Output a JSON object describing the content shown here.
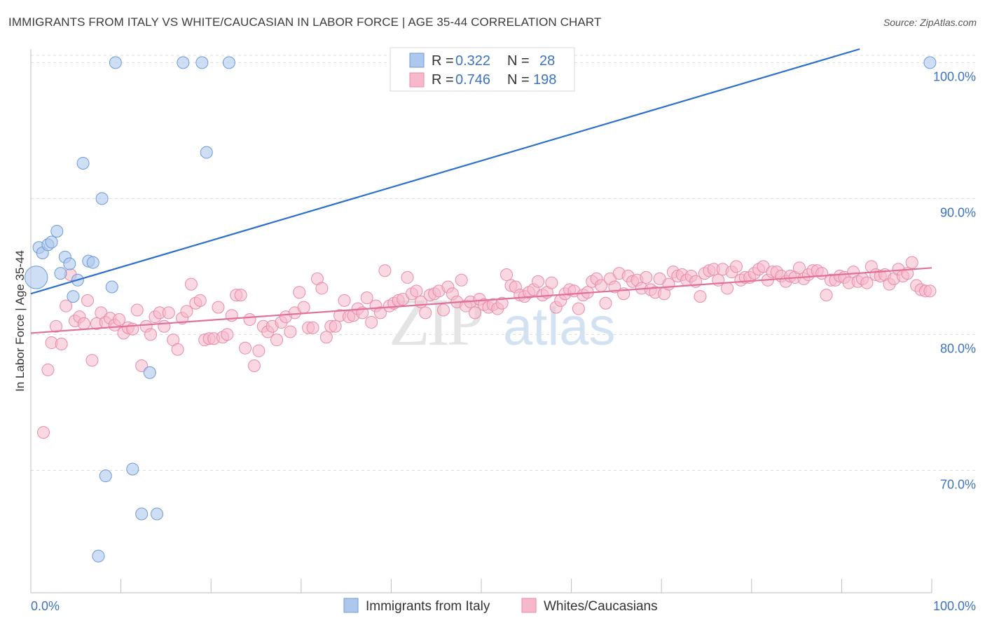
{
  "title": "IMMIGRANTS FROM ITALY VS WHITE/CAUCASIAN IN LABOR FORCE | AGE 35-44 CORRELATION CHART",
  "source": "Source: ZipAtlas.com",
  "watermark": {
    "zip": "ZIP",
    "atlas": "atlas"
  },
  "colors": {
    "blue_fill": "#adc8ec",
    "blue_stroke": "#6f9ad6",
    "blue_line": "#2c6fcc",
    "pink_fill": "#f6b8cb",
    "pink_stroke": "#e98aa9",
    "pink_line": "#e0709a",
    "axis_label": "#3b73c4",
    "grid": "#dcdcdc"
  },
  "legend": {
    "blue": {
      "r_label": "R =",
      "r_value": "0.322",
      "n_label": "N =",
      "n_value": "28"
    },
    "pink": {
      "r_label": "R =",
      "r_value": "0.746",
      "n_label": "N =",
      "n_value": "198"
    }
  },
  "chart_data": {
    "type": "scatter",
    "xlabel": "",
    "ylabel": "In Labor Force | Age 35-44",
    "x_ticks": [
      "0.0%",
      "100.0%"
    ],
    "y_ticks": [
      {
        "value": 70,
        "label": "70.0%"
      },
      {
        "value": 80,
        "label": "80.0%"
      },
      {
        "value": 90,
        "label": "90.0%"
      },
      {
        "value": 100,
        "label": "100.0%"
      }
    ],
    "xlim": [
      0,
      100
    ],
    "ylim": [
      61,
      101
    ],
    "grid": true,
    "legend_placement": "top-center",
    "series": [
      {
        "name": "Immigrants from Italy",
        "color": "blue",
        "trend": {
          "x1": 0,
          "y1": 83.0,
          "x2": 92.0,
          "y2": 101.0
        },
        "points": [
          [
            0.6,
            84.2,
            3
          ],
          [
            0.9,
            86.4,
            1
          ],
          [
            1.3,
            86.0,
            1
          ],
          [
            1.9,
            86.6,
            1
          ],
          [
            2.3,
            86.8,
            1
          ],
          [
            2.9,
            87.6,
            1
          ],
          [
            3.3,
            84.5,
            1
          ],
          [
            3.8,
            85.7,
            1
          ],
          [
            4.3,
            85.2,
            1
          ],
          [
            4.7,
            82.8,
            1
          ],
          [
            5.2,
            84.0,
            1
          ],
          [
            5.8,
            92.6,
            1
          ],
          [
            6.4,
            85.4,
            1
          ],
          [
            6.9,
            85.3,
            1
          ],
          [
            7.9,
            90.0,
            1
          ],
          [
            9.0,
            83.5,
            1
          ],
          [
            9.4,
            100.0,
            1
          ],
          [
            16.9,
            100.0,
            1
          ],
          [
            19.0,
            100.0,
            1
          ],
          [
            22.0,
            100.0,
            1
          ],
          [
            19.5,
            93.4,
            1
          ],
          [
            13.2,
            77.2,
            1
          ],
          [
            8.3,
            69.6,
            1
          ],
          [
            11.3,
            70.1,
            1
          ],
          [
            12.3,
            66.8,
            1
          ],
          [
            14.0,
            66.8,
            1
          ],
          [
            7.5,
            63.7,
            1
          ],
          [
            99.8,
            100.0,
            1
          ]
        ]
      },
      {
        "name": "Whites/Caucasians",
        "color": "pink",
        "trend": {
          "x1": 0,
          "y1": 80.1,
          "x2": 100.0,
          "y2": 84.9
        },
        "points": [
          [
            1.4,
            72.8
          ],
          [
            1.9,
            77.4
          ],
          [
            2.3,
            79.4
          ],
          [
            2.8,
            80.6
          ],
          [
            3.4,
            79.3
          ],
          [
            3.9,
            82.1
          ],
          [
            4.4,
            84.4
          ],
          [
            4.9,
            81.0
          ],
          [
            5.4,
            81.3
          ],
          [
            5.9,
            80.8
          ],
          [
            6.3,
            82.5
          ],
          [
            6.8,
            78.1
          ],
          [
            7.3,
            80.8
          ],
          [
            7.8,
            81.6
          ],
          [
            8.3,
            80.9
          ],
          [
            8.8,
            81.2
          ],
          [
            9.3,
            80.7
          ],
          [
            9.8,
            81.1
          ],
          [
            10.3,
            80.1
          ],
          [
            10.8,
            80.5
          ],
          [
            11.3,
            80.4
          ],
          [
            11.8,
            81.8
          ],
          [
            12.3,
            77.7
          ],
          [
            12.8,
            80.6
          ],
          [
            13.3,
            80.0
          ],
          [
            13.8,
            81.3
          ],
          [
            14.3,
            81.6
          ],
          [
            14.8,
            80.6
          ],
          [
            15.3,
            81.6
          ],
          [
            15.8,
            79.6
          ],
          [
            16.3,
            78.9
          ],
          [
            16.8,
            81.2
          ],
          [
            17.3,
            81.7
          ],
          [
            17.8,
            83.7
          ],
          [
            18.3,
            82.3
          ],
          [
            18.8,
            82.5
          ],
          [
            19.3,
            79.6
          ],
          [
            19.8,
            79.7
          ],
          [
            20.3,
            79.7
          ],
          [
            20.8,
            82.0
          ],
          [
            21.3,
            79.8
          ],
          [
            21.8,
            80.0
          ],
          [
            22.3,
            81.4
          ],
          [
            22.8,
            82.9
          ],
          [
            23.3,
            82.9
          ],
          [
            23.8,
            79.0
          ],
          [
            24.3,
            81.1
          ],
          [
            24.8,
            77.7
          ],
          [
            25.3,
            78.8
          ],
          [
            25.8,
            80.6
          ],
          [
            26.3,
            80.2
          ],
          [
            26.8,
            80.6
          ],
          [
            27.3,
            79.6
          ],
          [
            27.8,
            80.9
          ],
          [
            28.3,
            81.3
          ],
          [
            28.8,
            80.2
          ],
          [
            29.3,
            81.6
          ],
          [
            29.8,
            83.1
          ],
          [
            30.3,
            82.0
          ],
          [
            30.8,
            80.5
          ],
          [
            31.3,
            80.5
          ],
          [
            31.8,
            84.1
          ],
          [
            32.3,
            83.4
          ],
          [
            32.8,
            79.8
          ],
          [
            33.3,
            80.6
          ],
          [
            33.8,
            80.6
          ],
          [
            34.3,
            81.4
          ],
          [
            34.8,
            82.5
          ],
          [
            35.3,
            81.3
          ],
          [
            35.8,
            81.4
          ],
          [
            36.3,
            81.9
          ],
          [
            36.8,
            81.6
          ],
          [
            37.3,
            82.7
          ],
          [
            37.8,
            80.9
          ],
          [
            38.3,
            82.1
          ],
          [
            38.8,
            81.6
          ],
          [
            39.3,
            84.7
          ],
          [
            39.8,
            82.1
          ],
          [
            40.3,
            82.3
          ],
          [
            40.8,
            82.5
          ],
          [
            41.3,
            82.6
          ],
          [
            41.8,
            84.2
          ],
          [
            42.3,
            83.0
          ],
          [
            42.8,
            83.2
          ],
          [
            43.3,
            82.4
          ],
          [
            43.8,
            81.6
          ],
          [
            44.3,
            82.9
          ],
          [
            44.8,
            83.0
          ],
          [
            45.3,
            83.2
          ],
          [
            45.8,
            81.8
          ],
          [
            46.3,
            83.5
          ],
          [
            46.8,
            83.0
          ],
          [
            47.3,
            82.4
          ],
          [
            47.8,
            84.0
          ],
          [
            48.3,
            82.1
          ],
          [
            48.8,
            82.4
          ],
          [
            49.3,
            81.6
          ],
          [
            49.8,
            82.6
          ],
          [
            50.3,
            82.2
          ],
          [
            50.8,
            82.0
          ],
          [
            51.3,
            82.2
          ],
          [
            51.8,
            81.9
          ],
          [
            52.3,
            82.3
          ],
          [
            52.8,
            84.4
          ],
          [
            53.3,
            83.6
          ],
          [
            53.8,
            83.5
          ],
          [
            54.3,
            82.9
          ],
          [
            54.8,
            82.8
          ],
          [
            55.3,
            83.1
          ],
          [
            55.8,
            83.3
          ],
          [
            56.3,
            83.9
          ],
          [
            56.8,
            82.9
          ],
          [
            57.3,
            83.1
          ],
          [
            57.8,
            83.8
          ],
          [
            58.3,
            82.0
          ],
          [
            58.8,
            82.5
          ],
          [
            59.3,
            83.0
          ],
          [
            59.8,
            83.3
          ],
          [
            60.3,
            83.2
          ],
          [
            60.8,
            81.9
          ],
          [
            61.3,
            82.9
          ],
          [
            61.8,
            83.1
          ],
          [
            62.3,
            83.9
          ],
          [
            62.8,
            84.1
          ],
          [
            63.3,
            83.6
          ],
          [
            63.8,
            82.3
          ],
          [
            64.3,
            84.1
          ],
          [
            64.8,
            83.5
          ],
          [
            65.3,
            84.5
          ],
          [
            65.8,
            83.0
          ],
          [
            66.3,
            84.3
          ],
          [
            66.8,
            83.9
          ],
          [
            67.3,
            84.0
          ],
          [
            67.8,
            83.4
          ],
          [
            68.3,
            84.2
          ],
          [
            68.8,
            83.3
          ],
          [
            69.3,
            83.1
          ],
          [
            69.8,
            84.1
          ],
          [
            70.3,
            83.0
          ],
          [
            70.8,
            83.7
          ],
          [
            71.3,
            84.6
          ],
          [
            71.8,
            84.3
          ],
          [
            72.3,
            84.4
          ],
          [
            72.8,
            84.0
          ],
          [
            73.3,
            84.3
          ],
          [
            73.8,
            83.9
          ],
          [
            74.3,
            82.8
          ],
          [
            74.8,
            84.5
          ],
          [
            75.3,
            84.7
          ],
          [
            75.8,
            84.8
          ],
          [
            76.3,
            84.0
          ],
          [
            76.8,
            84.8
          ],
          [
            77.3,
            83.4
          ],
          [
            77.8,
            84.6
          ],
          [
            78.3,
            85.0
          ],
          [
            78.8,
            84.0
          ],
          [
            79.3,
            84.2
          ],
          [
            79.8,
            84.2
          ],
          [
            80.3,
            84.5
          ],
          [
            80.8,
            84.8
          ],
          [
            81.3,
            85.0
          ],
          [
            81.8,
            84.0
          ],
          [
            82.3,
            84.6
          ],
          [
            82.8,
            84.6
          ],
          [
            83.3,
            84.3
          ],
          [
            83.8,
            83.9
          ],
          [
            84.3,
            84.3
          ],
          [
            84.8,
            84.2
          ],
          [
            85.3,
            84.9
          ],
          [
            85.8,
            84.1
          ],
          [
            86.3,
            84.4
          ],
          [
            86.8,
            84.7
          ],
          [
            87.3,
            84.7
          ],
          [
            87.8,
            84.5
          ],
          [
            88.3,
            82.9
          ],
          [
            88.8,
            84.0
          ],
          [
            89.3,
            84.0
          ],
          [
            89.8,
            84.3
          ],
          [
            90.3,
            84.2
          ],
          [
            90.8,
            83.8
          ],
          [
            91.3,
            84.6
          ],
          [
            91.8,
            83.9
          ],
          [
            92.3,
            84.1
          ],
          [
            92.8,
            83.8
          ],
          [
            93.3,
            85.0
          ],
          [
            93.8,
            84.4
          ],
          [
            94.3,
            84.3
          ],
          [
            94.8,
            84.4
          ],
          [
            95.3,
            83.7
          ],
          [
            95.8,
            84.1
          ],
          [
            96.3,
            84.8
          ],
          [
            96.8,
            84.3
          ],
          [
            97.3,
            84.5
          ],
          [
            97.8,
            85.3
          ],
          [
            98.3,
            83.6
          ],
          [
            98.8,
            83.3
          ],
          [
            99.3,
            83.2
          ],
          [
            99.8,
            83.2
          ]
        ]
      }
    ]
  }
}
